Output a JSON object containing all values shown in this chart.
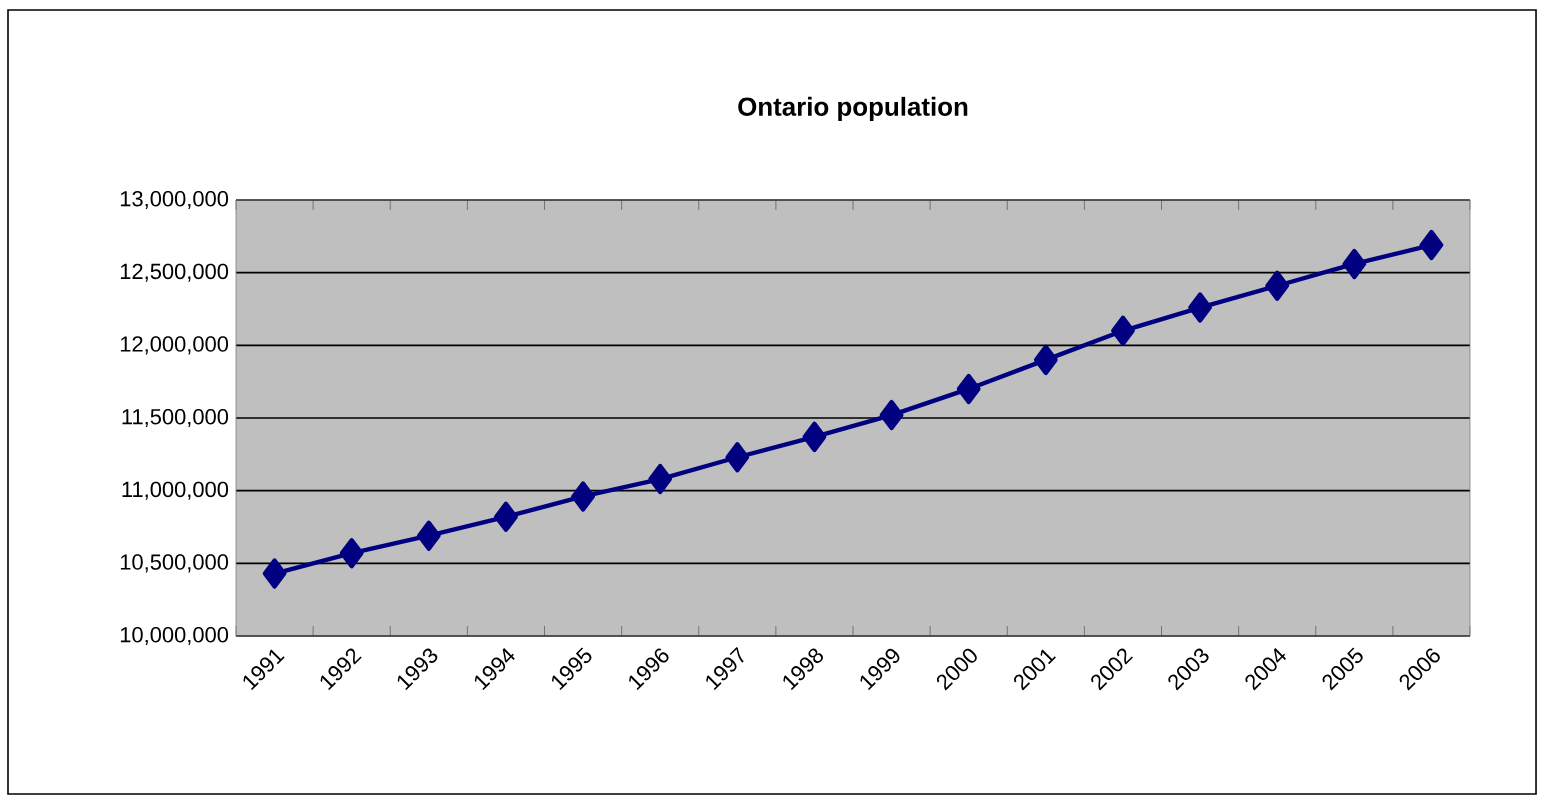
{
  "chart_data": {
    "type": "line",
    "title": "Ontario population",
    "categories": [
      "1991",
      "1992",
      "1993",
      "1994",
      "1995",
      "1996",
      "1997",
      "1998",
      "1999",
      "2000",
      "2001",
      "2002",
      "2003",
      "2004",
      "2005",
      "2006"
    ],
    "series": [
      {
        "color": "#000080",
        "values": [
          10430000,
          10570000,
          10690000,
          10820000,
          10960000,
          11080000,
          11230000,
          11370000,
          11520000,
          11700000,
          11900000,
          12100000,
          12260000,
          12410000,
          12560000,
          12690000
        ]
      }
    ],
    "ylim": [
      10000000,
      13000000
    ],
    "yticks": [
      {
        "value": 10000000,
        "label": "10,000,000"
      },
      {
        "value": 10500000,
        "label": "10,500,000"
      },
      {
        "value": 11000000,
        "label": "11,000,000"
      },
      {
        "value": 11500000,
        "label": "11,500,000"
      },
      {
        "value": 12000000,
        "label": "12,000,000"
      },
      {
        "value": 12500000,
        "label": "12,500,000"
      },
      {
        "value": 13000000,
        "label": "13,000,000"
      }
    ],
    "grid": "y",
    "marker": "diamond",
    "line_style": "solid"
  }
}
